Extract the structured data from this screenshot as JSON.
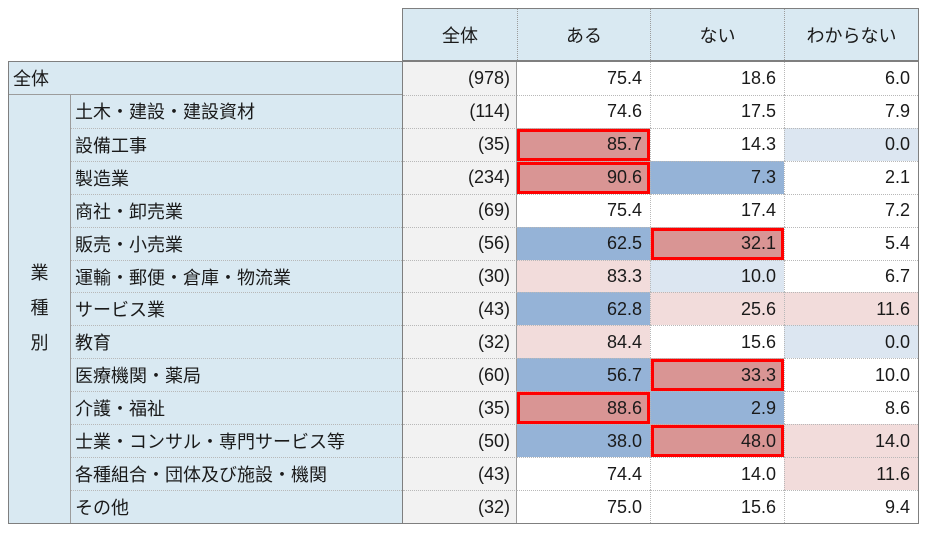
{
  "columns": [
    "全体",
    "ある",
    "ない",
    "わからない"
  ],
  "group": {
    "label": "業種別",
    "chars": [
      "業",
      "種",
      "別"
    ]
  },
  "overall_row": {
    "label": "全体",
    "n": "(978)",
    "values": [
      "75.4",
      "18.6",
      "6.0"
    ],
    "styles": [
      "plain",
      "plain",
      "plain"
    ],
    "boxed": [
      false,
      false,
      false
    ]
  },
  "industry_rows": [
    {
      "label": "土木・建設・建設資材",
      "n": "(114)",
      "values": [
        "74.6",
        "17.5",
        "7.9"
      ],
      "styles": [
        "plain",
        "plain",
        "plain"
      ],
      "boxed": [
        false,
        false,
        false
      ]
    },
    {
      "label": "設備工事",
      "n": "(35)",
      "values": [
        "85.7",
        "14.3",
        "0.0"
      ],
      "styles": [
        "strong-pink",
        "plain",
        "light-blue"
      ],
      "boxed": [
        true,
        false,
        false
      ]
    },
    {
      "label": "製造業",
      "n": "(234)",
      "values": [
        "90.6",
        "7.3",
        "2.1"
      ],
      "styles": [
        "strong-pink",
        "strong-blue",
        "plain"
      ],
      "boxed": [
        true,
        false,
        false
      ]
    },
    {
      "label": "商社・卸売業",
      "n": "(69)",
      "values": [
        "75.4",
        "17.4",
        "7.2"
      ],
      "styles": [
        "plain",
        "plain",
        "plain"
      ],
      "boxed": [
        false,
        false,
        false
      ]
    },
    {
      "label": "販売・小売業",
      "n": "(56)",
      "values": [
        "62.5",
        "32.1",
        "5.4"
      ],
      "styles": [
        "strong-blue",
        "strong-pink",
        "plain"
      ],
      "boxed": [
        false,
        true,
        false
      ]
    },
    {
      "label": "運輸・郵便・倉庫・物流業",
      "n": "(30)",
      "values": [
        "83.3",
        "10.0",
        "6.7"
      ],
      "styles": [
        "light-pink",
        "light-blue",
        "plain"
      ],
      "boxed": [
        false,
        false,
        false
      ]
    },
    {
      "label": "サービス業",
      "n": "(43)",
      "values": [
        "62.8",
        "25.6",
        "11.6"
      ],
      "styles": [
        "strong-blue",
        "light-pink",
        "light-pink"
      ],
      "boxed": [
        false,
        false,
        false
      ]
    },
    {
      "label": "教育",
      "n": "(32)",
      "values": [
        "84.4",
        "15.6",
        "0.0"
      ],
      "styles": [
        "light-pink",
        "plain",
        "light-blue"
      ],
      "boxed": [
        false,
        false,
        false
      ]
    },
    {
      "label": "医療機関・薬局",
      "n": "(60)",
      "values": [
        "56.7",
        "33.3",
        "10.0"
      ],
      "styles": [
        "strong-blue",
        "strong-pink",
        "plain"
      ],
      "boxed": [
        false,
        true,
        false
      ]
    },
    {
      "label": "介護・福祉",
      "n": "(35)",
      "values": [
        "88.6",
        "2.9",
        "8.6"
      ],
      "styles": [
        "strong-pink",
        "strong-blue",
        "plain"
      ],
      "boxed": [
        true,
        false,
        false
      ]
    },
    {
      "label": "士業・コンサル・専門サービス等",
      "n": "(50)",
      "values": [
        "38.0",
        "48.0",
        "14.0"
      ],
      "styles": [
        "strong-blue",
        "strong-pink",
        "light-pink"
      ],
      "boxed": [
        false,
        true,
        false
      ]
    },
    {
      "label": "各種組合・団体及び施設・機関",
      "n": "(43)",
      "values": [
        "74.4",
        "14.0",
        "11.6"
      ],
      "styles": [
        "plain",
        "plain",
        "light-pink"
      ],
      "boxed": [
        false,
        false,
        false
      ]
    },
    {
      "label": "その他",
      "n": "(32)",
      "values": [
        "75.0",
        "15.6",
        "9.4"
      ],
      "styles": [
        "plain",
        "plain",
        "plain"
      ],
      "boxed": [
        false,
        false,
        false
      ]
    }
  ],
  "colors": {
    "header_bg": "#D9E9F2",
    "label_bg": "#D9E9F2",
    "count_bg": "#F2F2F2",
    "strong_pink": "#D99594",
    "strong_blue": "#95B3D7",
    "light_pink": "#F2DCDB",
    "light_blue": "#DCE6F1",
    "red_box": "#FF0000"
  },
  "chart_data": {
    "type": "table",
    "title": "",
    "row_group_label": "業種別",
    "columns": [
      "全体",
      "ある",
      "ない",
      "わからない"
    ],
    "rows": [
      {
        "group": "全体",
        "label": "全体",
        "n": 978,
        "values": [
          75.4,
          18.6,
          6.0
        ]
      },
      {
        "group": "業種別",
        "label": "土木・建設・建設資材",
        "n": 114,
        "values": [
          74.6,
          17.5,
          7.9
        ]
      },
      {
        "group": "業種別",
        "label": "設備工事",
        "n": 35,
        "values": [
          85.7,
          14.3,
          0.0
        ]
      },
      {
        "group": "業種別",
        "label": "製造業",
        "n": 234,
        "values": [
          90.6,
          7.3,
          2.1
        ]
      },
      {
        "group": "業種別",
        "label": "商社・卸売業",
        "n": 69,
        "values": [
          75.4,
          17.4,
          7.2
        ]
      },
      {
        "group": "業種別",
        "label": "販売・小売業",
        "n": 56,
        "values": [
          62.5,
          32.1,
          5.4
        ]
      },
      {
        "group": "業種別",
        "label": "運輸・郵便・倉庫・物流業",
        "n": 30,
        "values": [
          83.3,
          10.0,
          6.7
        ]
      },
      {
        "group": "業種別",
        "label": "サービス業",
        "n": 43,
        "values": [
          62.8,
          25.6,
          11.6
        ]
      },
      {
        "group": "業種別",
        "label": "教育",
        "n": 32,
        "values": [
          84.4,
          15.6,
          0.0
        ]
      },
      {
        "group": "業種別",
        "label": "医療機関・薬局",
        "n": 60,
        "values": [
          56.7,
          33.3,
          10.0
        ]
      },
      {
        "group": "業種別",
        "label": "介護・福祉",
        "n": 35,
        "values": [
          88.6,
          2.9,
          8.6
        ]
      },
      {
        "group": "業種別",
        "label": "士業・コンサル・専門サービス等",
        "n": 50,
        "values": [
          38.0,
          48.0,
          14.0
        ]
      },
      {
        "group": "業種別",
        "label": "各種組合・団体及び施設・機関",
        "n": 43,
        "values": [
          74.4,
          14.0,
          11.6
        ]
      },
      {
        "group": "業種別",
        "label": "その他",
        "n": 32,
        "values": [
          75.0,
          15.6,
          9.4
        ]
      }
    ]
  }
}
